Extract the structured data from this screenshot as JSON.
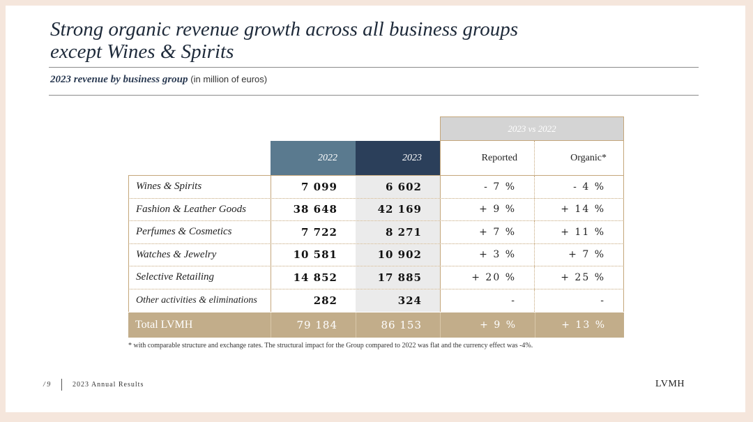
{
  "slide": {
    "title_line1": "Strong organic revenue growth across all business groups",
    "title_line2": "except Wines & Spirits",
    "subtitle_bold": "2023 revenue by business group",
    "subtitle_note": "(in million of euros)"
  },
  "table": {
    "group_header": "2023 vs 2022",
    "col_2022": "2022",
    "col_2023": "2023",
    "col_reported": "Reported",
    "col_organic": "Organic*",
    "rows": [
      {
        "label": "Wines & Spirits",
        "v2022": "7 099",
        "v2023": "6 602",
        "reported": "- 7 %",
        "organic": "- 4 %"
      },
      {
        "label": "Fashion & Leather Goods",
        "v2022": "38 648",
        "v2023": "42 169",
        "reported": "+ 9 %",
        "organic": "+ 14 %"
      },
      {
        "label": "Perfumes & Cosmetics",
        "v2022": "7 722",
        "v2023": "8 271",
        "reported": "+ 7 %",
        "organic": "+ 11 %"
      },
      {
        "label": "Watches & Jewelry",
        "v2022": "10 581",
        "v2023": "10 902",
        "reported": "+ 3 %",
        "organic": "+ 7 %"
      },
      {
        "label": "Selective Retailing",
        "v2022": "14 852",
        "v2023": "17 885",
        "reported": "+ 20 %",
        "organic": "+ 25 %"
      },
      {
        "label": "Other activities & eliminations",
        "v2022": "282",
        "v2023": "324",
        "reported": "-",
        "organic": "-"
      }
    ],
    "total": {
      "label": "Total LVMH",
      "v2022": "79 184",
      "v2023": "86 153",
      "reported": "+ 9 %",
      "organic": "+ 13 %"
    }
  },
  "footnote": "* with comparable structure and exchange rates. The structural impact for the Group compared to 2022 was flat and the currency effect was -4%.",
  "footer": {
    "page": "/ 9",
    "label": "2023 Annual Results",
    "logo": "LVMH"
  },
  "colors": {
    "col_2022": "#5a7a8f",
    "col_2023": "#2b3f5a",
    "total_row": "#c2ad8a",
    "group_header": "#d4d4d4",
    "border": "#c4a67a"
  }
}
